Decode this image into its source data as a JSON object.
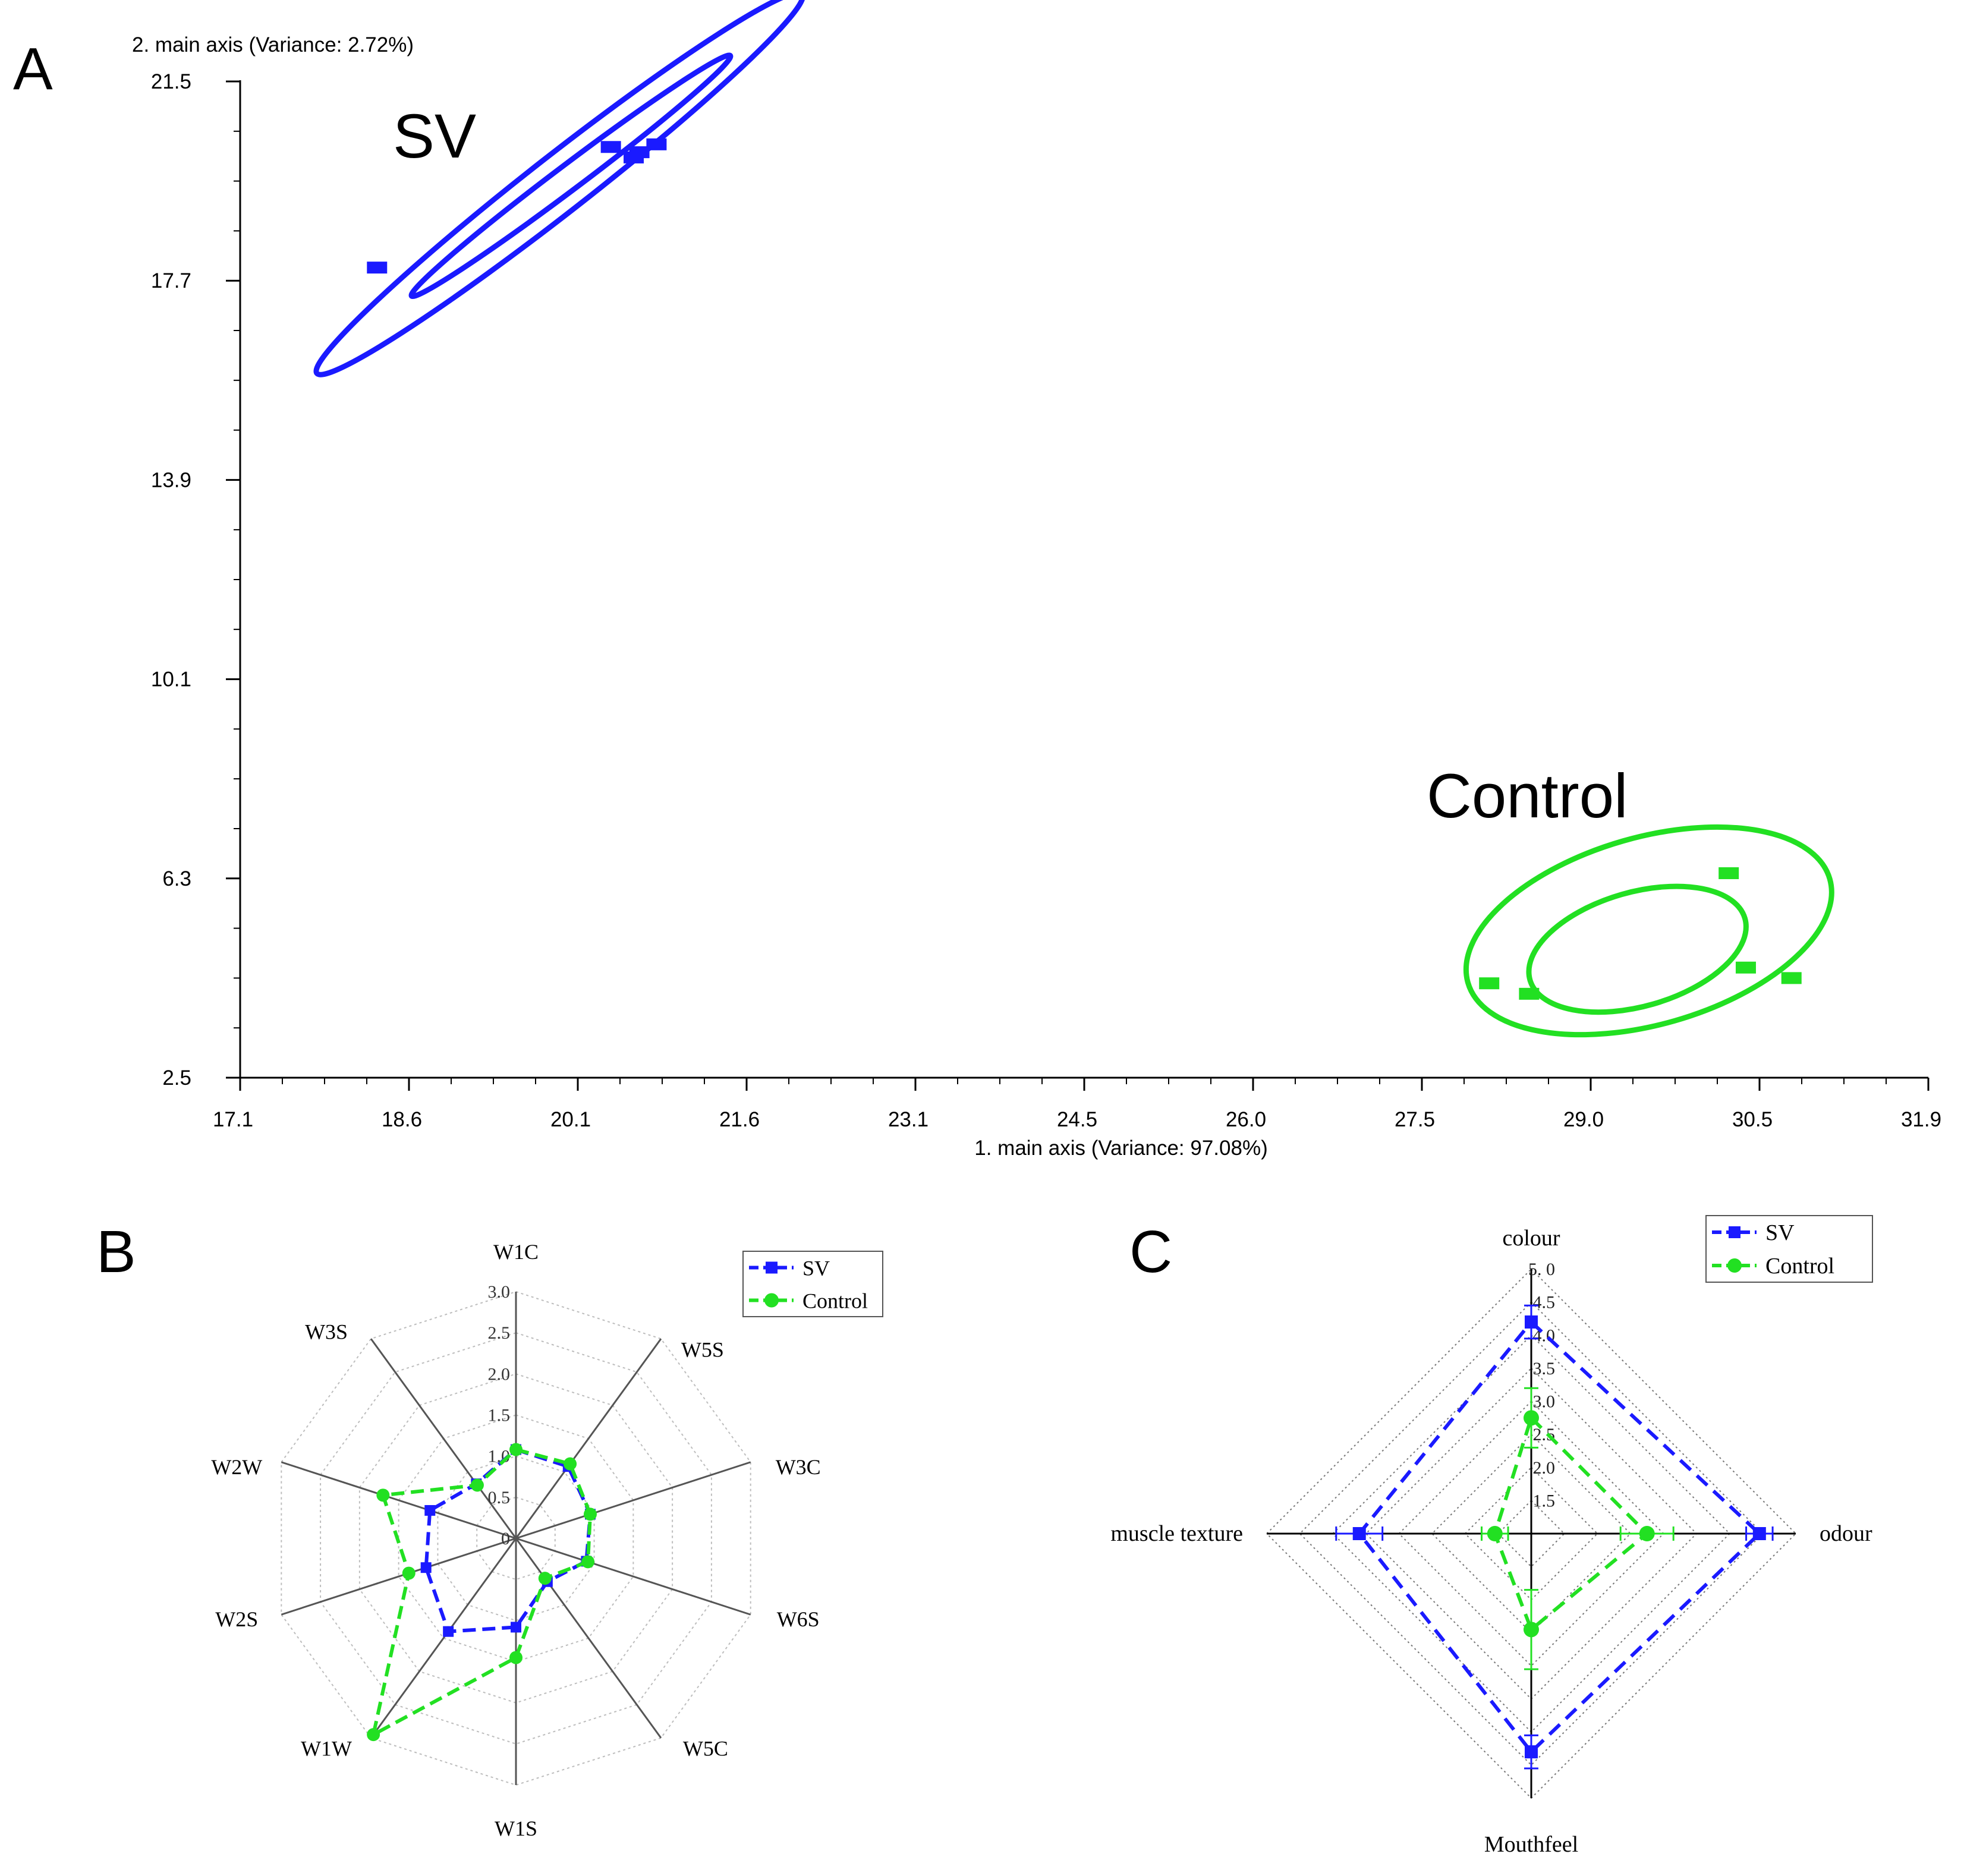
{
  "panels": {
    "A": {
      "letter": "A"
    },
    "B": {
      "letter": "B"
    },
    "C": {
      "letter": "C"
    }
  },
  "colors": {
    "sv": "#1a1aff",
    "control": "#22e022",
    "axis": "#000000",
    "grid": "#bdbdbd",
    "spoke": "#555555"
  },
  "chart_data": [
    {
      "id": "A",
      "type": "scatter",
      "title": "",
      "xlabel": "1. main axis (Variance: 97.08%)",
      "ylabel": "2. main axis (Variance: 2.72%)",
      "xlim": [
        17.1,
        31.9
      ],
      "ylim": [
        2.5,
        21.5
      ],
      "xticks": [
        "17.1",
        "18.6",
        "20.1",
        "21.6",
        "23.1",
        "24.5",
        "26.0",
        "27.5",
        "29.0",
        "30.5",
        "31.9"
      ],
      "yticks": [
        "2.5",
        "6.3",
        "10.1",
        "13.9",
        "17.7",
        "21.5"
      ],
      "annotations": [
        "SV",
        "Control"
      ],
      "series": [
        {
          "name": "SV",
          "points": [
            [
              20.35,
              20.25
            ],
            [
              20.6,
              20.15
            ],
            [
              20.75,
              20.3
            ],
            [
              20.55,
              20.05
            ],
            [
              18.3,
              17.95
            ]
          ],
          "ellipses": [
            {
              "cx": 19.9,
              "cy": 19.55,
              "rx": 2.7,
              "ry": 0.25,
              "angle": 38
            },
            {
              "cx": 20.0,
              "cy": 19.7,
              "rx": 1.75,
              "ry": 0.11,
              "angle": 37
            }
          ]
        },
        {
          "name": "Control",
          "points": [
            [
              30.15,
              6.4
            ],
            [
              30.3,
              4.6
            ],
            [
              30.7,
              4.4
            ],
            [
              28.05,
              4.3
            ],
            [
              28.4,
              4.1
            ]
          ],
          "ellipses": [
            {
              "cx": 29.45,
              "cy": 5.3,
              "rx": 1.65,
              "ry": 0.82,
              "angle": 16
            },
            {
              "cx": 29.35,
              "cy": 4.95,
              "rx": 0.98,
              "ry": 0.5,
              "angle": 16
            }
          ]
        }
      ]
    },
    {
      "id": "B",
      "type": "radar",
      "categories": [
        "W1C",
        "W5S",
        "W3C",
        "W6S",
        "W5C",
        "W1S",
        "W1W",
        "W2S",
        "W2W",
        "W3S"
      ],
      "rlim": [
        0,
        3.0
      ],
      "ticks": [
        "0.5",
        "1.0",
        "1.5",
        "2.0",
        "2.5",
        "3.0"
      ],
      "series": [
        {
          "name": "SV",
          "values": [
            1.08,
            1.08,
            0.95,
            0.9,
            0.65,
            1.08,
            1.4,
            1.15,
            1.1,
            0.82
          ]
        },
        {
          "name": "Control",
          "values": [
            1.08,
            1.12,
            0.95,
            0.92,
            0.6,
            1.45,
            2.95,
            1.37,
            1.7,
            0.8
          ]
        }
      ]
    },
    {
      "id": "C",
      "type": "radar",
      "categories": [
        "colour",
        "odour",
        "Mouthfeel",
        "muscle texture"
      ],
      "rlim": [
        1.0,
        5.0
      ],
      "ticks": [
        "1.5",
        "2.0",
        "2.5",
        "3.0",
        "3.5",
        "4.0",
        "4.5",
        "5.0"
      ],
      "tick_labels": [
        "1.5",
        "2.0",
        "2.5",
        "3.0",
        "3.5",
        "4.0",
        "4.5",
        "5. 0"
      ],
      "series": [
        {
          "name": "SV",
          "values": [
            4.2,
            4.45,
            4.3,
            3.6
          ],
          "err": [
            0.25,
            0.2,
            0.25,
            0.35
          ]
        },
        {
          "name": "Control",
          "values": [
            2.75,
            2.75,
            2.45,
            1.55
          ],
          "err": [
            0.45,
            0.4,
            0.6,
            0.2
          ]
        }
      ]
    }
  ]
}
